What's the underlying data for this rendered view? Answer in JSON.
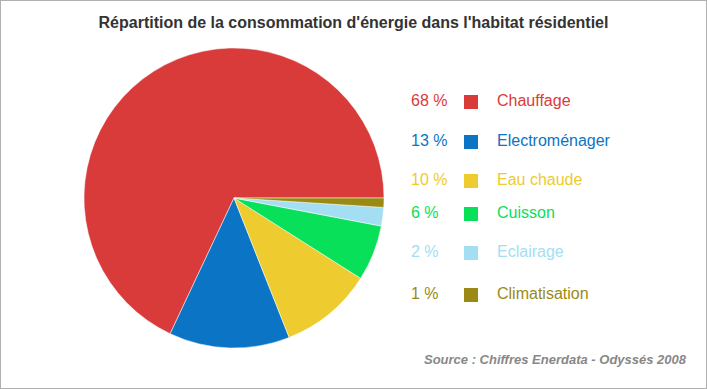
{
  "chart_data": {
    "type": "pie",
    "title": "Répartition de la consommation d'énergie dans l'habitat résidentiel",
    "categories": [
      "Chauffage",
      "Electroménager",
      "Eau chaude",
      "Cuisson",
      "Eclairage",
      "Climatisation"
    ],
    "values": [
      68,
      13,
      10,
      6,
      2,
      1
    ],
    "value_labels": [
      "68 %",
      "13 %",
      "10 %",
      "6 %",
      "2 %",
      "1 %"
    ],
    "colors": [
      "#d93a3a",
      "#0c74c4",
      "#eecb2e",
      "#08e05a",
      "#a3def3",
      "#9a8a14"
    ],
    "legend": "right",
    "annotations": [
      "Source : Chiffres Enerdata - Odyssés 2008"
    ]
  }
}
